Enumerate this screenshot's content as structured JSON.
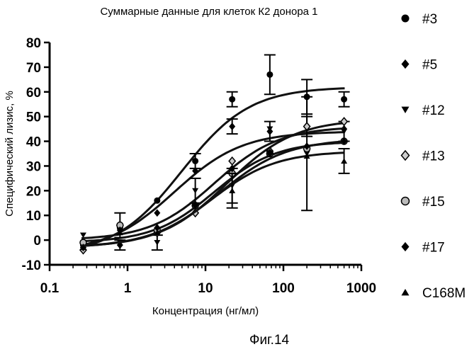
{
  "chart_data": {
    "type": "scatter",
    "title": "Суммарные данные для клеток К2 донора 1",
    "xlabel": "Концентрация (нг/мл)",
    "ylabel": "Специфический лизис, %",
    "xscale": "log",
    "xlim": [
      0.1,
      1000
    ],
    "ylim": [
      -10,
      80
    ],
    "x_ticks": [
      0.1,
      1,
      10,
      100,
      1000
    ],
    "x_tick_labels": [
      "0.1",
      "1",
      "10",
      "100",
      "1000"
    ],
    "y_ticks": [
      -10,
      0,
      10,
      20,
      30,
      40,
      50,
      60,
      70,
      80
    ],
    "y_tick_labels": [
      "-10",
      "0",
      "10",
      "20",
      "30",
      "40",
      "50",
      "60",
      "70",
      "80"
    ],
    "legend_position": "right",
    "x": [
      0.27,
      0.8,
      2.4,
      7.4,
      22,
      67,
      200,
      600
    ],
    "series": [
      {
        "name": "#3",
        "marker": "circle",
        "values": [
          -2,
          5,
          16,
          32,
          57,
          67,
          58,
          57
        ],
        "errors": [
          0,
          0,
          0,
          3,
          3,
          8,
          7,
          3
        ],
        "fit": [
          62,
          5,
          -6,
          1.0
        ]
      },
      {
        "name": "#5",
        "marker": "diamond",
        "values": [
          -3,
          -2,
          11,
          28,
          46,
          44,
          46,
          45
        ],
        "errors": [
          0,
          2,
          0,
          0,
          3,
          4,
          4,
          0
        ],
        "fit": [
          44,
          4,
          -5,
          1.0
        ]
      },
      {
        "name": "#12",
        "marker": "triangle-down",
        "values": [
          2,
          -1,
          -1,
          20,
          22,
          45,
          35,
          44
        ],
        "errors": [
          0,
          0,
          3,
          5,
          7,
          0,
          23,
          4
        ],
        "fit": [
          46,
          13,
          0,
          1.05
        ]
      },
      {
        "name": "#13",
        "marker": "diamond-outline",
        "values": [
          -4,
          6,
          3,
          11,
          32,
          36,
          46,
          48
        ],
        "errors": [
          0,
          0,
          0,
          0,
          0,
          0,
          0,
          0
        ],
        "fit": [
          49,
          19,
          -3,
          1.0
        ]
      },
      {
        "name": "#15",
        "marker": "circle-outline",
        "values": [
          -1,
          6,
          4,
          14,
          27,
          35,
          37,
          40
        ],
        "errors": [
          0,
          5,
          0,
          0,
          0,
          0,
          0,
          0
        ],
        "fit": [
          40,
          13,
          -1,
          1.1
        ]
      },
      {
        "name": "#17",
        "marker": "diamond",
        "values": [
          -3,
          4,
          5,
          14,
          29,
          35,
          38,
          40
        ],
        "errors": [
          0,
          0,
          0,
          0,
          0,
          0,
          0,
          0
        ],
        "fit": [
          41,
          15,
          -3,
          1.0
        ]
      },
      {
        "name": "C168M",
        "marker": "triangle-up",
        "values": [
          -3,
          3,
          3,
          15,
          20,
          36,
          34,
          32
        ],
        "errors": [
          0,
          0,
          0,
          0,
          7,
          0,
          0,
          5
        ],
        "fit": [
          36,
          12,
          -3,
          1.05
        ]
      }
    ]
  },
  "figure_caption": "Фиг.14"
}
